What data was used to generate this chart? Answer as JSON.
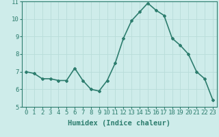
{
  "x": [
    0,
    1,
    2,
    3,
    4,
    5,
    6,
    7,
    8,
    9,
    10,
    11,
    12,
    13,
    14,
    15,
    16,
    17,
    18,
    19,
    20,
    21,
    22,
    23
  ],
  "y": [
    7.0,
    6.9,
    6.6,
    6.6,
    6.5,
    6.5,
    7.2,
    6.5,
    6.0,
    5.9,
    6.5,
    7.5,
    8.9,
    9.9,
    10.4,
    10.9,
    10.5,
    10.2,
    8.9,
    8.5,
    8.0,
    7.0,
    6.6,
    5.4
  ],
  "line_color": "#2d7d6e",
  "marker": "D",
  "marker_size": 2.0,
  "bg_color": "#ceecea",
  "grid_color": "#b8dcd9",
  "xlabel": "Humidex (Indice chaleur)",
  "ylim": [
    5,
    11
  ],
  "xlim": [
    -0.5,
    23.5
  ],
  "yticks": [
    5,
    6,
    7,
    8,
    9,
    10,
    11
  ],
  "xticks": [
    0,
    1,
    2,
    3,
    4,
    5,
    6,
    7,
    8,
    9,
    10,
    11,
    12,
    13,
    14,
    15,
    16,
    17,
    18,
    19,
    20,
    21,
    22,
    23
  ],
  "tick_fontsize": 6.5,
  "xlabel_fontsize": 7.5,
  "linewidth": 1.2
}
